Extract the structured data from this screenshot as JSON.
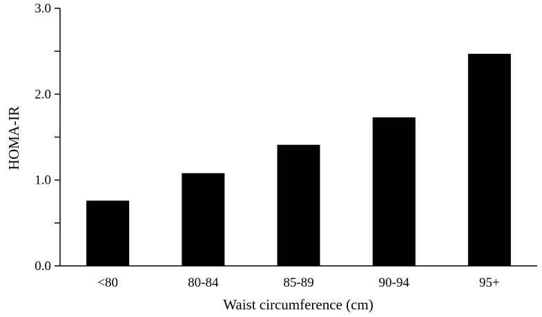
{
  "chart_data": {
    "type": "bar",
    "title": "",
    "xlabel": "Waist circumference (cm)",
    "ylabel": "HOMA-IR",
    "categories": [
      "<80",
      "80-84",
      "85-89",
      "90-94",
      "95+"
    ],
    "values": [
      0.76,
      1.08,
      1.41,
      1.73,
      2.47
    ],
    "ylim": [
      0,
      3.0
    ],
    "y_major_ticks": [
      0.0,
      1.0,
      2.0,
      3.0
    ],
    "y_major_tick_labels": [
      "0.0",
      "1.0",
      "2.0",
      "3.0"
    ],
    "y_minor_ticks": [
      0.5,
      1.5,
      2.5
    ],
    "grid": false,
    "legend": "none",
    "bar_color": "#000000"
  }
}
